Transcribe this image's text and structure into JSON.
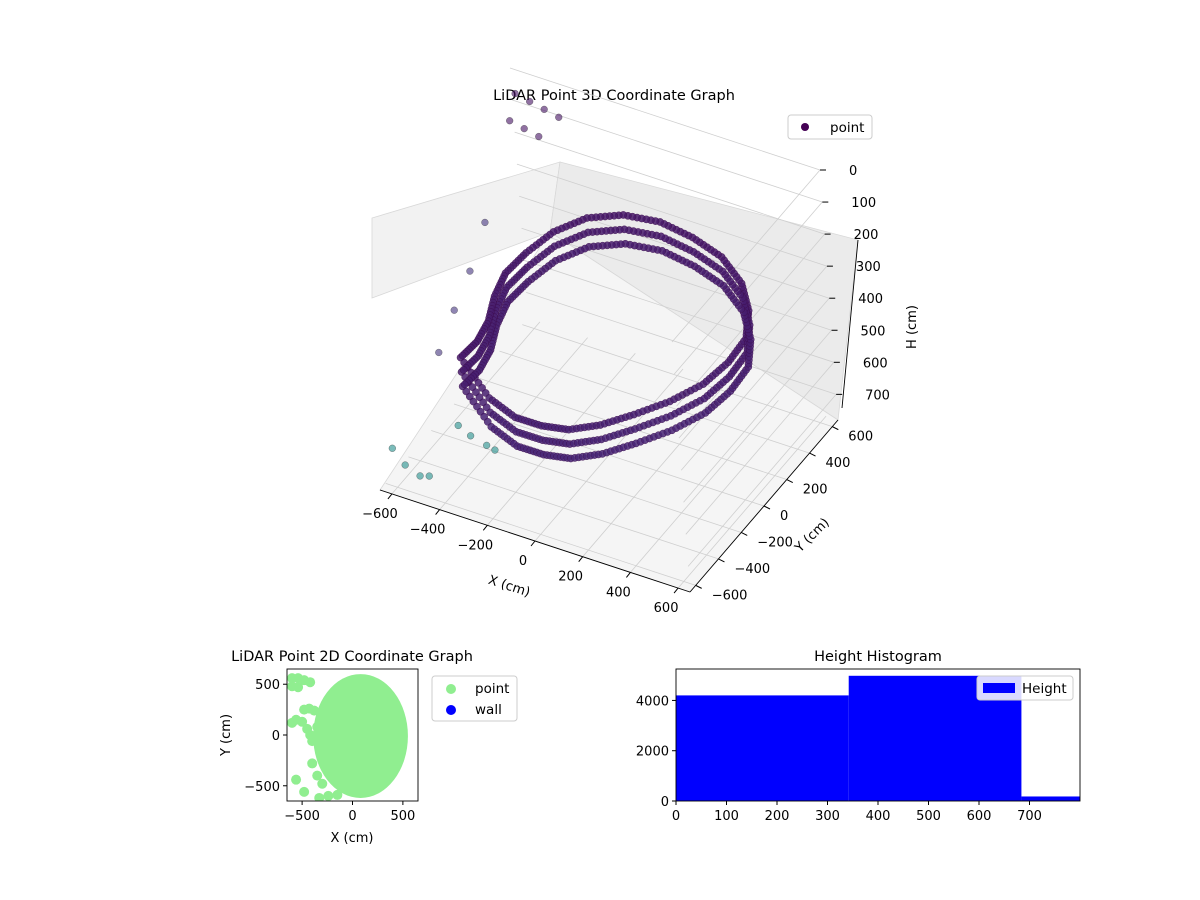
{
  "chart_data": [
    {
      "type": "scatter",
      "title": "LiDAR Point 3D Coordinate Graph",
      "xlabel": "X (cm)",
      "ylabel": "Y (cm)",
      "zlabel": "H (cm)",
      "x_ticks": [
        "−600",
        "−400",
        "−200",
        "0",
        "200",
        "400",
        "600"
      ],
      "y_ticks": [
        "−600",
        "−400",
        "−200",
        "0",
        "200",
        "400",
        "600"
      ],
      "z_ticks": [
        "0",
        "100",
        "200",
        "300",
        "400",
        "500",
        "600",
        "700"
      ],
      "xlim": [
        -650,
        650
      ],
      "ylim": [
        -650,
        650
      ],
      "zlim": [
        0,
        780
      ],
      "z_inverted": true,
      "colormap": "viridis",
      "legend": {
        "position": "top-right",
        "entries": [
          {
            "label": "point",
            "color": "#440154"
          }
        ]
      },
      "series": [
        {
          "name": "point",
          "note": "dense ring-shaped point cloud",
          "points": [
            [
              -300,
              -580,
              310
            ],
            [
              -200,
              -560,
              420
            ],
            [
              -100,
              -550,
              460
            ],
            [
              0,
              -530,
              470
            ],
            [
              100,
              -500,
              470
            ],
            [
              200,
              -430,
              460
            ],
            [
              300,
              -340,
              440
            ],
            [
              400,
              -230,
              420
            ],
            [
              480,
              -100,
              400
            ],
            [
              520,
              40,
              380
            ],
            [
              530,
              180,
              360
            ],
            [
              480,
              310,
              340
            ],
            [
              400,
              420,
              320
            ],
            [
              280,
              500,
              300
            ],
            [
              140,
              540,
              290
            ],
            [
              0,
              550,
              280
            ],
            [
              -140,
              520,
              280
            ],
            [
              -260,
              450,
              290
            ],
            [
              -350,
              340,
              310
            ],
            [
              -400,
              200,
              330
            ],
            [
              -420,
              60,
              340
            ],
            [
              -400,
              -80,
              350
            ],
            [
              -360,
              -220,
              360
            ],
            [
              -330,
              -380,
              350
            ],
            [
              -620,
              620,
              60
            ],
            [
              -560,
              620,
              70
            ],
            [
              -500,
              620,
              80
            ],
            [
              -440,
              620,
              90
            ],
            [
              -620,
              560,
              120
            ],
            [
              -560,
              560,
              130
            ],
            [
              -500,
              560,
              140
            ],
            [
              -600,
              -620,
              650
            ],
            [
              -550,
              -620,
              690
            ],
            [
              -500,
              -600,
              720
            ],
            [
              -450,
              -620,
              700
            ],
            [
              -400,
              -450,
              600
            ],
            [
              -350,
              -450,
              620
            ],
            [
              -300,
              -420,
              650
            ],
            [
              -250,
              -450,
              640
            ],
            [
              -620,
              300,
              330
            ],
            [
              -620,
              150,
              420
            ],
            [
              -620,
              0,
              480
            ],
            [
              -620,
              -150,
              550
            ]
          ]
        }
      ]
    },
    {
      "type": "scatter",
      "title": "LiDAR Point 2D Coordinate Graph",
      "xlabel": "X (cm)",
      "ylabel": "Y (cm)",
      "x_ticks": [
        "−500",
        "0",
        "500"
      ],
      "y_ticks": [
        "500",
        "0",
        "−500"
      ],
      "xlim": [
        -650,
        650
      ],
      "ylim": [
        -650,
        650
      ],
      "legend": {
        "position": "outside-right",
        "entries": [
          {
            "label": "point",
            "color": "#90ee90"
          },
          {
            "label": "wall",
            "color": "#0000ff"
          }
        ]
      },
      "series": [
        {
          "name": "point",
          "color": "#90ee90",
          "blob": {
            "center": [
              80,
              -10
            ],
            "rx": 470,
            "ry": 610
          },
          "points": [
            [
              -600,
              560
            ],
            [
              -540,
              560
            ],
            [
              -480,
              540
            ],
            [
              -420,
              520
            ],
            [
              -600,
              480
            ],
            [
              -540,
              470
            ],
            [
              -560,
              150
            ],
            [
              -500,
              130
            ],
            [
              -600,
              120
            ],
            [
              -450,
              60
            ],
            [
              -420,
              0
            ],
            [
              -400,
              -60
            ],
            [
              -480,
              250
            ],
            [
              -430,
              260
            ],
            [
              -380,
              240
            ],
            [
              -350,
              80
            ],
            [
              -560,
              -440
            ],
            [
              -480,
              -560
            ],
            [
              -330,
              -620
            ],
            [
              -240,
              -600
            ],
            [
              -150,
              -590
            ],
            [
              -400,
              -280
            ],
            [
              -350,
              -400
            ],
            [
              -300,
              -480
            ]
          ]
        },
        {
          "name": "wall",
          "color": "#0000ff",
          "points": []
        }
      ]
    },
    {
      "type": "bar",
      "title": "Height Histogram",
      "legend": {
        "position": "top-right",
        "entries": [
          {
            "label": "Height",
            "color": "#0000ff"
          }
        ]
      },
      "x_ticks": [
        "0",
        "100",
        "200",
        "300",
        "400",
        "500",
        "600",
        "700"
      ],
      "y_ticks": [
        "0",
        "2000",
        "4000"
      ],
      "xlim": [
        0,
        800
      ],
      "ylim": [
        0,
        5250
      ],
      "bins": [
        {
          "from": 0,
          "to": 342,
          "value": 4200
        },
        {
          "from": 342,
          "to": 684,
          "value": 4980
        },
        {
          "from": 684,
          "to": 800,
          "value": 180
        }
      ],
      "color": "#0000ff"
    }
  ]
}
